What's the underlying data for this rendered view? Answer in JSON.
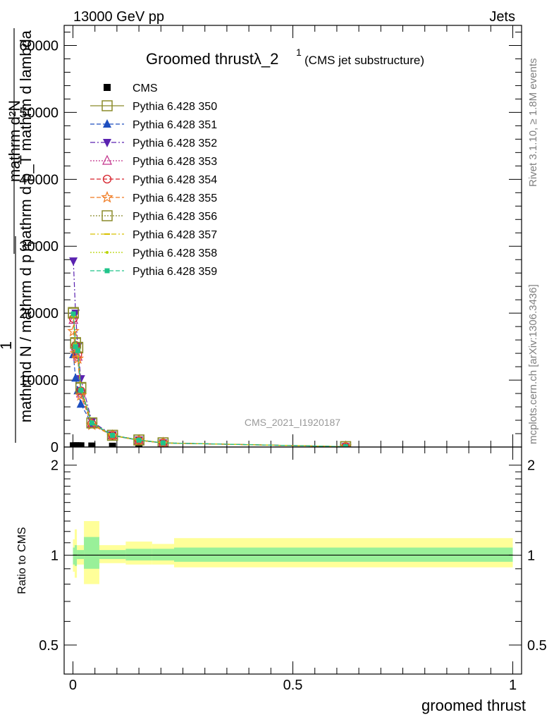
{
  "header": {
    "left": "13000 GeV pp",
    "right": "Jets"
  },
  "side_labels": {
    "rivet": "Rivet 3.1.10, ≥ 1.8M events",
    "mcplots": "mcplots.cern.ch [arXiv:1306.3436]"
  },
  "watermark": "CMS_2021_I1920187",
  "colors": {
    "cms": "#000000",
    "p350": "#8b8b2a",
    "p351": "#1f4fbf",
    "p352": "#5a22b0",
    "p353": "#c2308a",
    "p354": "#d6202a",
    "p355": "#f07a20",
    "p356": "#8b8b2a",
    "p357": "#d8c000",
    "p358": "#b8d400",
    "p359": "#20c48a",
    "band_inner": "#99f099",
    "band_outer": "#ffff99"
  },
  "chart_data": [
    {
      "type": "line",
      "title": "Groomed thrustλ_2",
      "title_sup": "1",
      "subtitle": "(CMS jet substructure)",
      "ylabel_lines": [
        "mathrm d²N",
        "mathrm d p_T mathrm d lambda",
        "1",
        "mathrm N / mathrm d p_T"
      ],
      "ylabel_num": "mathrm d²N",
      "ylabel_den": "mathrm d p_T mathrm d lambda",
      "ylabel_pre": "1",
      "ylabel_main": "mathrmd N / mathrm d p",
      "ylabel_sub": "T",
      "ylim": [
        0,
        63000
      ],
      "yticks": [
        0,
        10000,
        20000,
        30000,
        40000,
        50000,
        60000
      ],
      "ytick_labels": [
        "0",
        "10000",
        "20000",
        "30000",
        "40000",
        "50000",
        "60000"
      ],
      "xlim": [
        -0.02,
        1.02
      ],
      "legend_placement": "top-left",
      "series": [
        {
          "name": "CMS",
          "key": "cms",
          "marker": "square-filled",
          "dash": "none",
          "x": [
            0.001,
            0.006,
            0.011,
            0.018,
            0.043,
            0.09,
            0.15,
            0.205,
            0.62
          ],
          "y": [
            180,
            180,
            180,
            180,
            150,
            120,
            90,
            60,
            20
          ]
        },
        {
          "name": "Pythia 6.428 350",
          "key": "p350",
          "marker": "square-open",
          "dash": "solid",
          "x": [
            0.001,
            0.006,
            0.011,
            0.018,
            0.043,
            0.09,
            0.15,
            0.205,
            0.62
          ],
          "y": [
            20000,
            15500,
            14800,
            8800,
            3600,
            1750,
            1050,
            620,
            50
          ]
        },
        {
          "name": "Pythia 6.428 351",
          "key": "p351",
          "marker": "triangle-up-filled",
          "dash": "dashed",
          "x": [
            0.001,
            0.006,
            0.011,
            0.018,
            0.043,
            0.09,
            0.15,
            0.205,
            0.62
          ],
          "y": [
            13800,
            10300,
            8400,
            6400,
            3500,
            1700,
            1000,
            600,
            50
          ]
        },
        {
          "name": "Pythia 6.428 352",
          "key": "p352",
          "marker": "triangle-down-filled",
          "dash": "dashdot",
          "x": [
            0.001,
            0.006,
            0.011,
            0.018,
            0.043,
            0.09,
            0.15,
            0.205,
            0.62
          ],
          "y": [
            27800,
            20000,
            15000,
            10200,
            3800,
            1800,
            1050,
            620,
            50
          ]
        },
        {
          "name": "Pythia 6.428 353",
          "key": "p353",
          "marker": "triangle-up-open",
          "dash": "dotted",
          "x": [
            0.001,
            0.006,
            0.011,
            0.018,
            0.043,
            0.09,
            0.15,
            0.205,
            0.62
          ],
          "y": [
            19000,
            15000,
            13500,
            8000,
            3500,
            1750,
            1000,
            600,
            50
          ]
        },
        {
          "name": "Pythia 6.428 354",
          "key": "p354",
          "marker": "circle-open",
          "dash": "dashed",
          "x": [
            0.001,
            0.006,
            0.011,
            0.018,
            0.043,
            0.09,
            0.15,
            0.205,
            0.62
          ],
          "y": [
            19200,
            15200,
            13800,
            8400,
            3500,
            1750,
            1000,
            600,
            50
          ]
        },
        {
          "name": "Pythia 6.428 355",
          "key": "p355",
          "marker": "star-open",
          "dash": "dashed",
          "x": [
            0.001,
            0.006,
            0.011,
            0.018,
            0.043,
            0.09,
            0.15,
            0.205,
            0.62
          ],
          "y": [
            17300,
            14000,
            13200,
            7700,
            3300,
            1700,
            1000,
            600,
            50
          ]
        },
        {
          "name": "Pythia 6.428 356",
          "key": "p356",
          "marker": "square-open",
          "dash": "dotted",
          "x": [
            0.001,
            0.006,
            0.011,
            0.018,
            0.043,
            0.09,
            0.15,
            0.205,
            0.62
          ],
          "y": [
            20100,
            15600,
            14900,
            8900,
            3600,
            1750,
            1050,
            620,
            50
          ]
        },
        {
          "name": "Pythia 6.428 357",
          "key": "p357",
          "marker": "dash-small",
          "dash": "dashdot",
          "x": [
            0.001,
            0.006,
            0.011,
            0.018,
            0.043,
            0.09,
            0.15,
            0.205,
            0.62
          ],
          "y": [
            19500,
            15300,
            14500,
            8600,
            3550,
            1750,
            1030,
            610,
            50
          ]
        },
        {
          "name": "Pythia 6.428 358",
          "key": "p358",
          "marker": "dot-small",
          "dash": "dotted",
          "x": [
            0.001,
            0.006,
            0.011,
            0.018,
            0.043,
            0.09,
            0.15,
            0.205,
            0.62
          ],
          "y": [
            19800,
            15400,
            14600,
            8700,
            3550,
            1750,
            1040,
            615,
            50
          ]
        },
        {
          "name": "Pythia 6.428 359",
          "key": "p359",
          "marker": "square-filled-small",
          "dash": "dashed",
          "x": [
            0.001,
            0.006,
            0.011,
            0.018,
            0.043,
            0.09,
            0.15,
            0.205,
            0.62
          ],
          "y": [
            19900,
            15000,
            14400,
            8500,
            3600,
            1750,
            1030,
            610,
            50
          ]
        }
      ]
    },
    {
      "type": "area",
      "ylabel": "Ratio to CMS",
      "xlabel": "groomed thrust",
      "ylim": [
        0.4,
        2.3
      ],
      "yscale": "log",
      "yticks": [
        0.5,
        1,
        2
      ],
      "ytick_labels": [
        "0.5",
        "1",
        "2"
      ],
      "xlim": [
        -0.02,
        1.02
      ],
      "xticks": [
        0,
        0.5,
        1
      ],
      "xtick_labels": [
        "0",
        "0.5",
        "1"
      ],
      "bands": [
        {
          "x0": 0.0,
          "x1": 0.004,
          "inner": [
            0.93,
            1.06
          ],
          "outer": [
            0.88,
            1.13
          ]
        },
        {
          "x0": 0.004,
          "x1": 0.009,
          "inner": [
            0.92,
            1.08
          ],
          "outer": [
            0.84,
            1.22
          ]
        },
        {
          "x0": 0.009,
          "x1": 0.025,
          "inner": [
            0.97,
            1.04
          ],
          "outer": [
            0.93,
            1.08
          ]
        },
        {
          "x0": 0.025,
          "x1": 0.06,
          "inner": [
            0.9,
            1.15
          ],
          "outer": [
            0.8,
            1.3
          ]
        },
        {
          "x0": 0.06,
          "x1": 0.12,
          "inner": [
            0.97,
            1.04
          ],
          "outer": [
            0.94,
            1.08
          ]
        },
        {
          "x0": 0.12,
          "x1": 0.18,
          "inner": [
            0.96,
            1.05
          ],
          "outer": [
            0.93,
            1.11
          ]
        },
        {
          "x0": 0.18,
          "x1": 0.23,
          "inner": [
            0.96,
            1.05
          ],
          "outer": [
            0.93,
            1.09
          ]
        },
        {
          "x0": 0.23,
          "x1": 1.0,
          "inner": [
            0.95,
            1.06
          ],
          "outer": [
            0.91,
            1.14
          ]
        }
      ],
      "reference": 1
    }
  ]
}
